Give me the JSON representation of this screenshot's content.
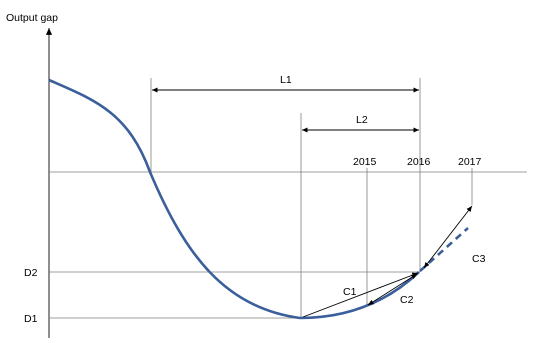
{
  "diagram": {
    "y_axis_label": "Output gap",
    "span_labels": {
      "l1": "L1",
      "l2": "L2"
    },
    "year_labels": [
      "2015",
      "2016",
      "2017"
    ],
    "level_labels": {
      "d2": "D2",
      "d1": "D1"
    },
    "segment_labels": {
      "c1": "C1",
      "c2": "C2",
      "c3": "C3"
    },
    "colors": {
      "curve": "#3a5f9a",
      "guides": "#7f7f7f",
      "arrows": "#000000"
    }
  }
}
